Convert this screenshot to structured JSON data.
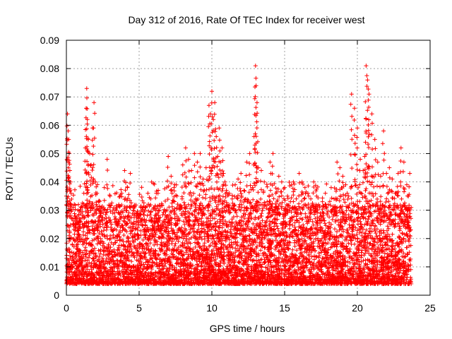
{
  "chart_data": {
    "type": "scatter",
    "title": "Day 312 of 2016, Rate Of TEC Index for receiver west",
    "xlabel": "GPS time / hours",
    "ylabel": "ROTI / TECUs",
    "xlim": [
      0,
      25
    ],
    "ylim": [
      0,
      0.09
    ],
    "x_ticks": [
      0,
      5,
      10,
      15,
      20,
      25
    ],
    "x_tick_labels": [
      "0",
      "5",
      "10",
      "15",
      "20",
      "25"
    ],
    "y_ticks": [
      0,
      0.01,
      0.02,
      0.03,
      0.04,
      0.05,
      0.06,
      0.07,
      0.08,
      0.09
    ],
    "y_tick_labels": [
      "0",
      "0.01",
      "0.02",
      "0.03",
      "0.04",
      "0.05",
      "0.06",
      "0.07",
      "0.08",
      "0.09"
    ],
    "grid": true,
    "marker": "+",
    "color": "#ff0000",
    "series": [
      {
        "name": "ROTI",
        "x": [
          0.0,
          0.04,
          0.08,
          0.12,
          0.16,
          0.2,
          0.24,
          0.28,
          0.32,
          0.36,
          0.4,
          0.5,
          0.6,
          0.7,
          0.8,
          0.9,
          1.0,
          1.1,
          1.2,
          1.3,
          1.36,
          1.4,
          1.44,
          1.5,
          1.6,
          1.7,
          1.8,
          1.9,
          2.0,
          2.1,
          2.2,
          2.4,
          2.6,
          2.8,
          3.0,
          3.2,
          3.4,
          3.6,
          3.8,
          4.0,
          4.2,
          4.4,
          4.6,
          4.8,
          5.0,
          5.2,
          5.4,
          5.6,
          5.8,
          6.0,
          6.2,
          6.4,
          6.6,
          6.8,
          7.0,
          7.2,
          7.4,
          7.6,
          7.8,
          8.0,
          8.2,
          8.4,
          8.6,
          8.8,
          9.0,
          9.2,
          9.4,
          9.6,
          9.8,
          9.9,
          10.0,
          10.1,
          10.2,
          10.3,
          10.4,
          10.5,
          10.6,
          10.7,
          10.8,
          10.9,
          11.0,
          11.2,
          11.4,
          11.6,
          11.8,
          12.0,
          12.2,
          12.4,
          12.6,
          12.8,
          12.9,
          13.0,
          13.04,
          13.1,
          13.2,
          13.4,
          13.6,
          13.8,
          14.0,
          14.2,
          14.4,
          14.6,
          14.8,
          15.0,
          15.2,
          15.4,
          15.6,
          15.8,
          16.0,
          16.2,
          16.4,
          16.6,
          16.8,
          17.0,
          17.2,
          17.4,
          17.6,
          17.8,
          18.0,
          18.2,
          18.4,
          18.6,
          18.8,
          19.0,
          19.2,
          19.3,
          19.4,
          19.6,
          19.8,
          20.0,
          20.2,
          20.4,
          20.5,
          20.56,
          20.6,
          20.7,
          20.8,
          21.0,
          21.2,
          21.4,
          21.6,
          21.8,
          22.0,
          22.2,
          22.4,
          22.6,
          22.8,
          23.0,
          23.2,
          23.4,
          23.6,
          23.7
        ],
        "y": [
          0.035,
          0.048,
          0.064,
          0.058,
          0.055,
          0.05,
          0.044,
          0.04,
          0.036,
          0.03,
          0.027,
          0.025,
          0.028,
          0.026,
          0.03,
          0.024,
          0.029,
          0.031,
          0.036,
          0.052,
          0.066,
          0.073,
          0.062,
          0.055,
          0.05,
          0.046,
          0.059,
          0.068,
          0.04,
          0.036,
          0.033,
          0.031,
          0.038,
          0.048,
          0.035,
          0.03,
          0.027,
          0.032,
          0.036,
          0.044,
          0.038,
          0.043,
          0.03,
          0.026,
          0.028,
          0.025,
          0.03,
          0.036,
          0.034,
          0.031,
          0.027,
          0.03,
          0.025,
          0.024,
          0.049,
          0.042,
          0.038,
          0.035,
          0.031,
          0.046,
          0.052,
          0.048,
          0.044,
          0.05,
          0.047,
          0.05,
          0.041,
          0.045,
          0.067,
          0.064,
          0.072,
          0.062,
          0.068,
          0.056,
          0.049,
          0.059,
          0.047,
          0.052,
          0.043,
          0.04,
          0.037,
          0.036,
          0.034,
          0.039,
          0.041,
          0.043,
          0.037,
          0.047,
          0.05,
          0.038,
          0.056,
          0.081,
          0.074,
          0.068,
          0.045,
          0.044,
          0.04,
          0.033,
          0.047,
          0.05,
          0.036,
          0.042,
          0.04,
          0.038,
          0.035,
          0.033,
          0.04,
          0.034,
          0.043,
          0.04,
          0.038,
          0.036,
          0.034,
          0.04,
          0.035,
          0.031,
          0.033,
          0.036,
          0.032,
          0.038,
          0.034,
          0.047,
          0.045,
          0.042,
          0.039,
          0.036,
          0.035,
          0.071,
          0.066,
          0.059,
          0.048,
          0.044,
          0.049,
          0.054,
          0.081,
          0.076,
          0.071,
          0.064,
          0.055,
          0.047,
          0.042,
          0.058,
          0.043,
          0.045,
          0.041,
          0.036,
          0.043,
          0.052,
          0.047,
          0.039,
          0.043,
          0.031
        ]
      }
    ],
    "background_band": "dense scatter of points between 0.003 and 0.03 across all hours"
  }
}
